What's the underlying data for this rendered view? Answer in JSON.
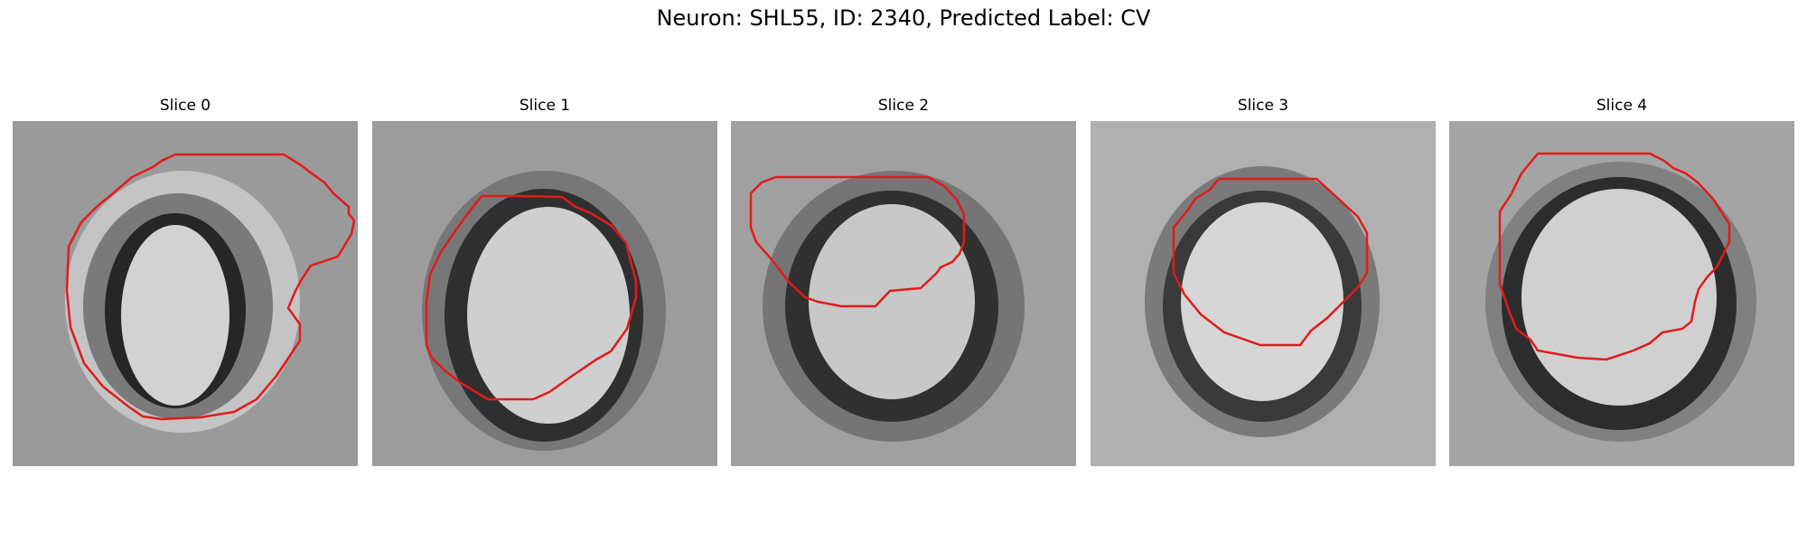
{
  "figure": {
    "title": "Neuron: SHL55, ID: 2340, Predicted Label: CV"
  },
  "colors": {
    "contour": "#e31a1c",
    "background": "#ffffff"
  },
  "panels": [
    {
      "title": "Slice 0"
    },
    {
      "title": "Slice 1"
    },
    {
      "title": "Slice 2"
    },
    {
      "title": "Slice 3"
    },
    {
      "title": "Slice 4"
    }
  ]
}
